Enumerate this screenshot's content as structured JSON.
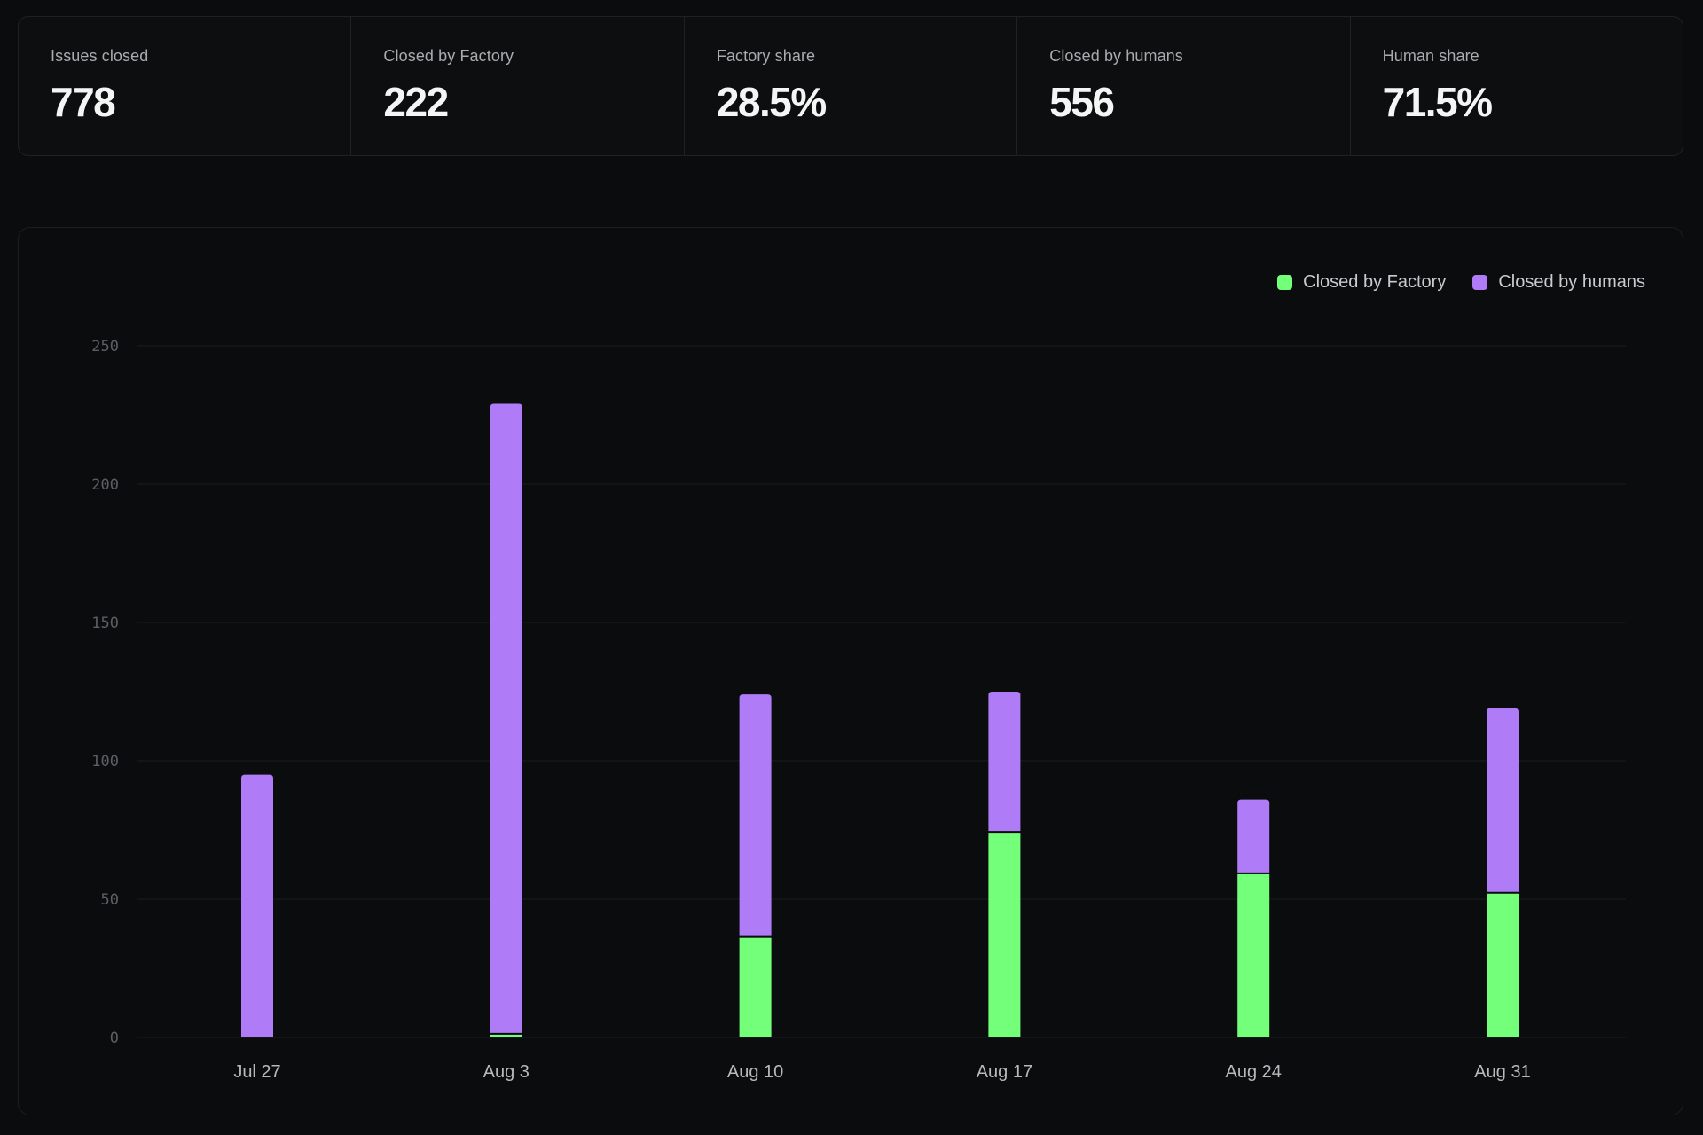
{
  "stats": [
    {
      "label": "Issues closed",
      "value": "778"
    },
    {
      "label": "Closed by Factory",
      "value": "222"
    },
    {
      "label": "Factory share",
      "value": "28.5%"
    },
    {
      "label": "Closed by humans",
      "value": "556"
    },
    {
      "label": "Human share",
      "value": "71.5%"
    }
  ],
  "colors": {
    "factory": "#73ff7a",
    "humans": "#af7bf7",
    "grid": "#1a1c1e"
  },
  "chart_data": {
    "type": "bar",
    "stacked": true,
    "categories": [
      "Jul 27",
      "Aug 3",
      "Aug 10",
      "Aug 17",
      "Aug 24",
      "Aug 31"
    ],
    "series": [
      {
        "name": "Closed by Factory",
        "values": [
          0,
          1,
          36,
          74,
          59,
          52
        ]
      },
      {
        "name": "Closed by humans",
        "values": [
          95,
          228,
          88,
          51,
          27,
          67
        ]
      }
    ],
    "yticks": [
      "0",
      "50",
      "100",
      "150",
      "200",
      "250"
    ],
    "ylim": [
      0,
      250
    ],
    "grid": true,
    "legend": "top-right"
  }
}
